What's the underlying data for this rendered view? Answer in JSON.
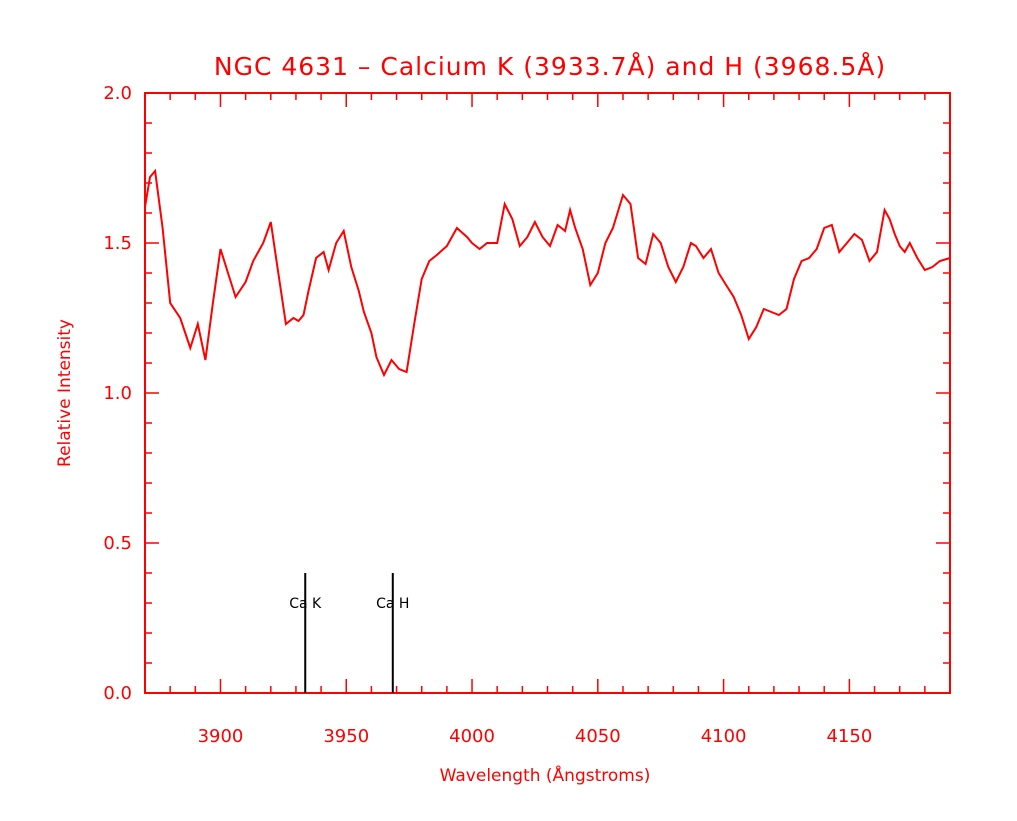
{
  "chart_data": {
    "type": "line",
    "title": "NGC 4631 – Calcium K (3933.7Å) and H (3968.5Å)",
    "xlabel": "Wavelength (Ångstroms)",
    "ylabel": "Relative Intensity",
    "xlim": [
      3870,
      4190
    ],
    "ylim": [
      0,
      2
    ],
    "grid": false,
    "line_color": "#ff0000",
    "x_ticks": [
      {
        "value": 3900,
        "label": "3900"
      },
      {
        "value": 3950,
        "label": "3950"
      },
      {
        "value": 4000,
        "label": "4000"
      },
      {
        "value": 4050,
        "label": "4050"
      },
      {
        "value": 4100,
        "label": "4100"
      },
      {
        "value": 4150,
        "label": "4150"
      }
    ],
    "y_ticks": [
      {
        "value": 0,
        "label": "0.0"
      },
      {
        "value": 0.5,
        "label": "0.5"
      },
      {
        "value": 1.0,
        "label": "1.0"
      },
      {
        "value": 1.5,
        "label": "1.5"
      },
      {
        "value": 2.0,
        "label": "2.0"
      }
    ],
    "series": [
      {
        "x": [
          3870,
          3872,
          3874,
          3877,
          3880,
          3884,
          3888,
          3891,
          3894,
          3897,
          3900,
          3903,
          3906,
          3910,
          3913,
          3917,
          3920,
          3923,
          3926,
          3929,
          3931,
          3933,
          3935,
          3938,
          3941,
          3943,
          3946,
          3949,
          3952,
          3955,
          3957,
          3960,
          3962,
          3965,
          3968,
          3971,
          3974,
          3977,
          3980,
          3983,
          3986,
          3990,
          3994,
          3998,
          4000,
          4003,
          4006,
          4010,
          4013,
          4016,
          4019,
          4022,
          4025,
          4028,
          4031,
          4034,
          4037,
          4039,
          4041,
          4044,
          4047,
          4050,
          4053,
          4056,
          4060,
          4063,
          4066,
          4069,
          4072,
          4075,
          4078,
          4081,
          4084,
          4087,
          4089,
          4092,
          4095,
          4098,
          4101,
          4104,
          4107,
          4110,
          4113,
          4116,
          4119,
          4122,
          4125,
          4128,
          4131,
          4134,
          4137,
          4140,
          4143,
          4146,
          4149,
          4152,
          4155,
          4158,
          4161,
          4164,
          4166,
          4168,
          4170,
          4172,
          4174,
          4177,
          4180,
          4183,
          4186,
          4190
        ],
        "y": [
          1.62,
          1.72,
          1.74,
          1.55,
          1.3,
          1.25,
          1.15,
          1.23,
          1.11,
          1.3,
          1.48,
          1.4,
          1.32,
          1.37,
          1.44,
          1.5,
          1.57,
          1.4,
          1.23,
          1.25,
          1.24,
          1.26,
          1.34,
          1.45,
          1.47,
          1.41,
          1.5,
          1.54,
          1.42,
          1.34,
          1.27,
          1.2,
          1.12,
          1.06,
          1.11,
          1.08,
          1.07,
          1.23,
          1.38,
          1.44,
          1.46,
          1.49,
          1.55,
          1.52,
          1.5,
          1.48,
          1.5,
          1.5,
          1.63,
          1.58,
          1.49,
          1.52,
          1.57,
          1.52,
          1.49,
          1.56,
          1.54,
          1.61,
          1.55,
          1.48,
          1.36,
          1.4,
          1.5,
          1.55,
          1.66,
          1.63,
          1.45,
          1.43,
          1.53,
          1.5,
          1.42,
          1.37,
          1.42,
          1.5,
          1.49,
          1.45,
          1.48,
          1.4,
          1.36,
          1.32,
          1.26,
          1.18,
          1.22,
          1.28,
          1.27,
          1.26,
          1.28,
          1.38,
          1.44,
          1.45,
          1.48,
          1.55,
          1.56,
          1.47,
          1.5,
          1.53,
          1.51,
          1.44,
          1.47,
          1.61,
          1.58,
          1.53,
          1.49,
          1.47,
          1.5,
          1.45,
          1.41,
          1.42,
          1.44,
          1.45
        ]
      }
    ],
    "markers": [
      {
        "x": 3933.7,
        "label": "Ca K",
        "y_top": 0.4
      },
      {
        "x": 3968.5,
        "label": "Ca H",
        "y_top": 0.4
      }
    ]
  }
}
